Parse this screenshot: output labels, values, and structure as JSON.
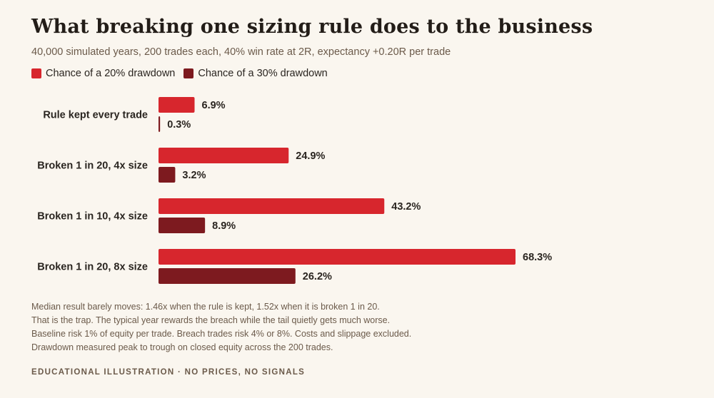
{
  "title": "What breaking one sizing rule does to the business",
  "subtitle": "40,000 simulated years, 200 trades each, 40% win rate at 2R, expectancy +0.20R per trade",
  "legend": [
    {
      "label": "Chance of a 20% drawdown",
      "color": "#d7262d"
    },
    {
      "label": "Chance of a 30% drawdown",
      "color": "#7d1a1f"
    }
  ],
  "chart_data": {
    "type": "bar",
    "orientation": "horizontal",
    "categories": [
      "Rule kept every trade",
      "Broken 1 in 20, 4x size",
      "Broken 1 in 10, 4x size",
      "Broken 1 in 20, 8x size"
    ],
    "series": [
      {
        "name": "Chance of a 20% drawdown",
        "color": "#d7262d",
        "values": [
          6.9,
          24.9,
          43.2,
          68.3
        ],
        "labels": [
          "6.9%",
          "24.9%",
          "43.2%",
          "68.3%"
        ]
      },
      {
        "name": "Chance of a 30% drawdown",
        "color": "#7d1a1f",
        "values": [
          0.3,
          3.2,
          8.9,
          26.2
        ],
        "labels": [
          "0.3%",
          "3.2%",
          "8.9%",
          "26.2%"
        ]
      }
    ],
    "unit": "%",
    "grid": false,
    "legend_position": "top-left"
  },
  "notes": [
    "Median result barely moves: 1.46x when the rule is kept, 1.52x when it is broken 1 in 20.",
    "That is the trap. The typical year rewards the breach while the tail quietly gets much worse.",
    "Baseline risk 1% of equity per trade. Breach trades risk 4% or 8%. Costs and slippage excluded.",
    "Drawdown measured peak to trough on closed equity across the 200 trades."
  ],
  "footer": "EDUCATIONAL ILLUSTRATION · NO PRICES, NO SIGNALS"
}
